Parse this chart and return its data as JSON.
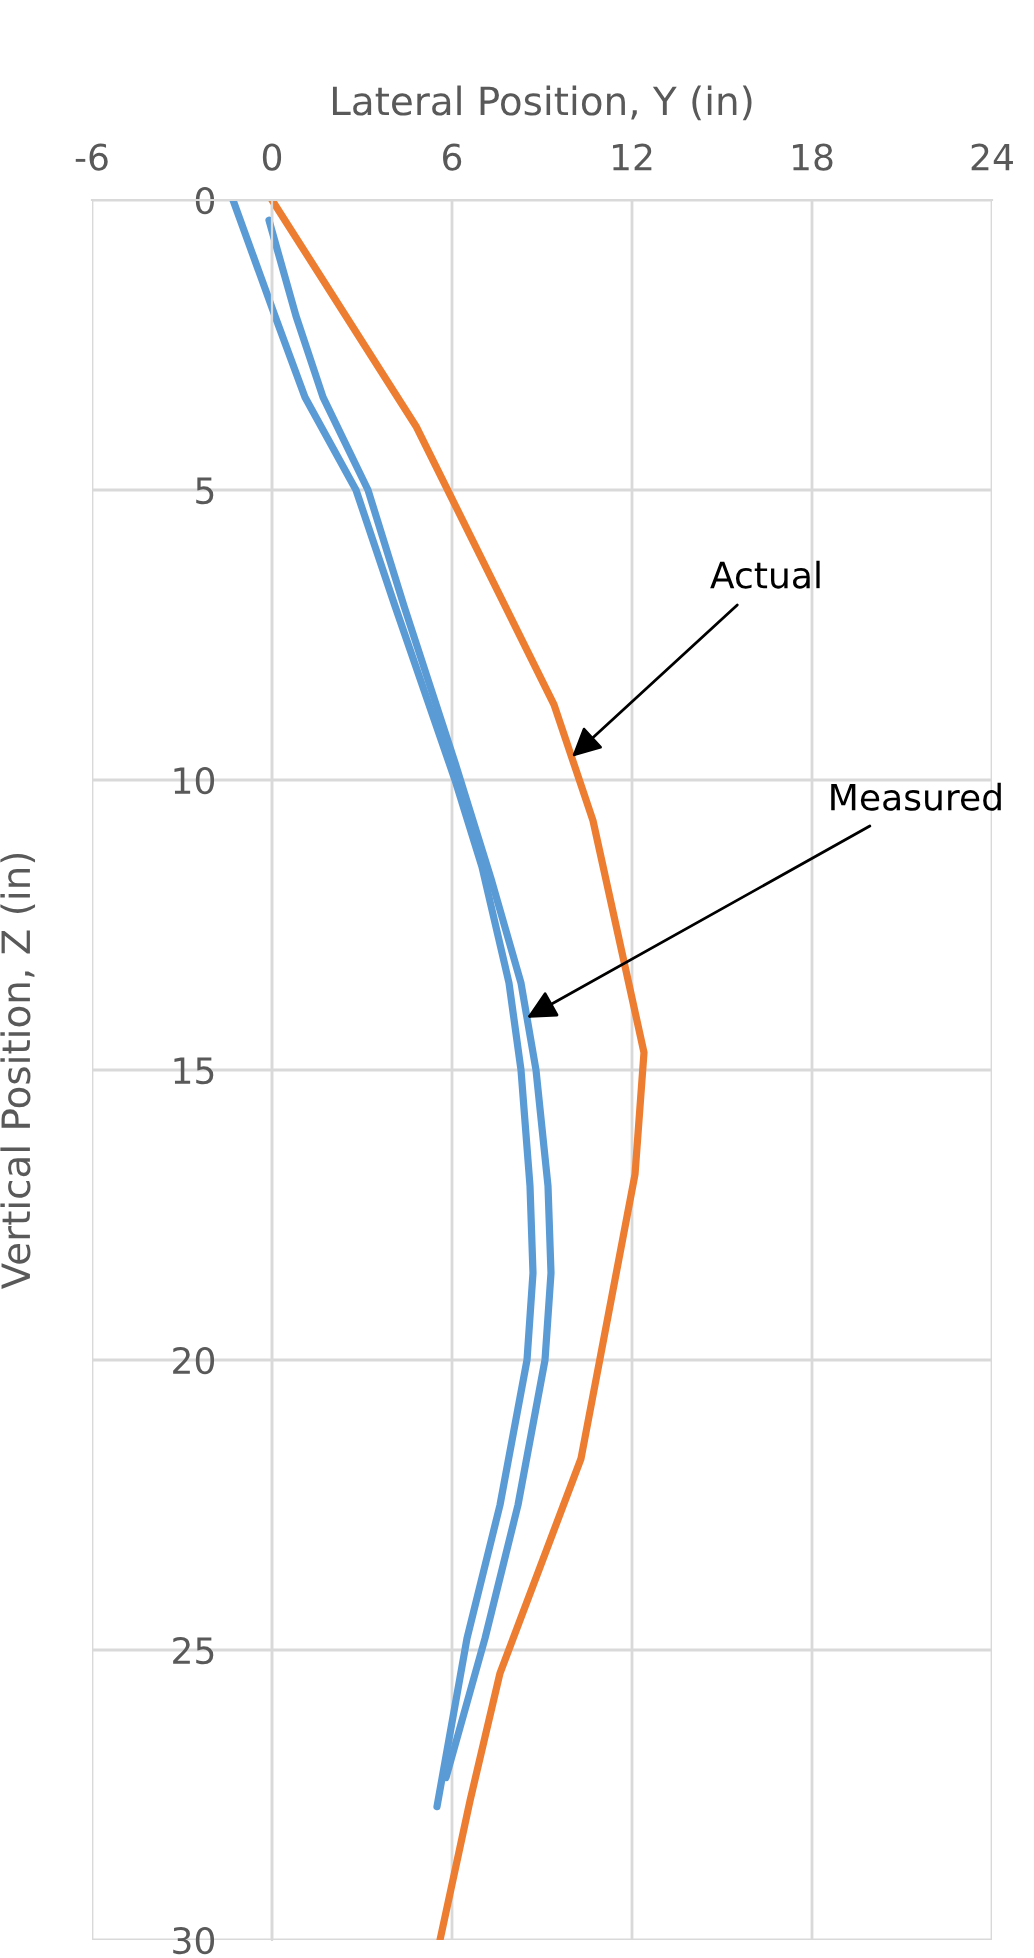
{
  "chart_data": {
    "type": "line",
    "xlabel": "Lateral Position, Y (in)",
    "ylabel": "Vertical Position, Z (in)",
    "xlim": [
      -6,
      24
    ],
    "xticks": [
      -6,
      0,
      6,
      12,
      18,
      24
    ],
    "ylim": [
      30,
      0
    ],
    "yticks": [
      0,
      5,
      10,
      15,
      20,
      25,
      30
    ],
    "grid": true,
    "legend": false,
    "marker": "none",
    "line_style": "solid",
    "series": [
      {
        "color": "#ed7d31",
        "x": [
          0,
          4.8,
          9.4,
          10.7,
          12.4,
          12.1,
          10.3,
          7.6,
          6.6,
          5.6
        ],
        "values": [
          0,
          3.9,
          8.7,
          10.7,
          14.7,
          16.8,
          21.7,
          25.4,
          27.6,
          30
        ]
      },
      {
        "color": "#5b9bd5",
        "x": [
          -1.3,
          0.1,
          1.1,
          2.8,
          4.1,
          6.1,
          7.0,
          7.9,
          8.3,
          8.6,
          8.7,
          8.5,
          7.6,
          6.5,
          5.5
        ],
        "values": [
          0,
          2,
          3.4,
          5,
          7,
          10,
          11.5,
          13.5,
          15,
          17,
          18.5,
          20,
          22.5,
          24.8,
          27.7
        ]
      },
      {
        "color": "#5b9bd5",
        "x": [
          -0.1,
          0.8,
          1.7,
          3.2,
          4.4,
          6.1,
          7.3,
          8.3,
          8.8,
          9.2,
          9.3,
          9.1,
          8.2,
          7.1,
          5.8
        ],
        "values": [
          0.35,
          2,
          3.4,
          5,
          7,
          9.7,
          11.7,
          13.5,
          15,
          17,
          18.5,
          20,
          22.5,
          24.8,
          27.2
        ]
      }
    ],
    "annotations": [
      {
        "text": "Actual",
        "x": 10.0,
        "y": 9.6
      },
      {
        "text": "Measured",
        "x": 8.5,
        "y": 14.1
      }
    ]
  }
}
